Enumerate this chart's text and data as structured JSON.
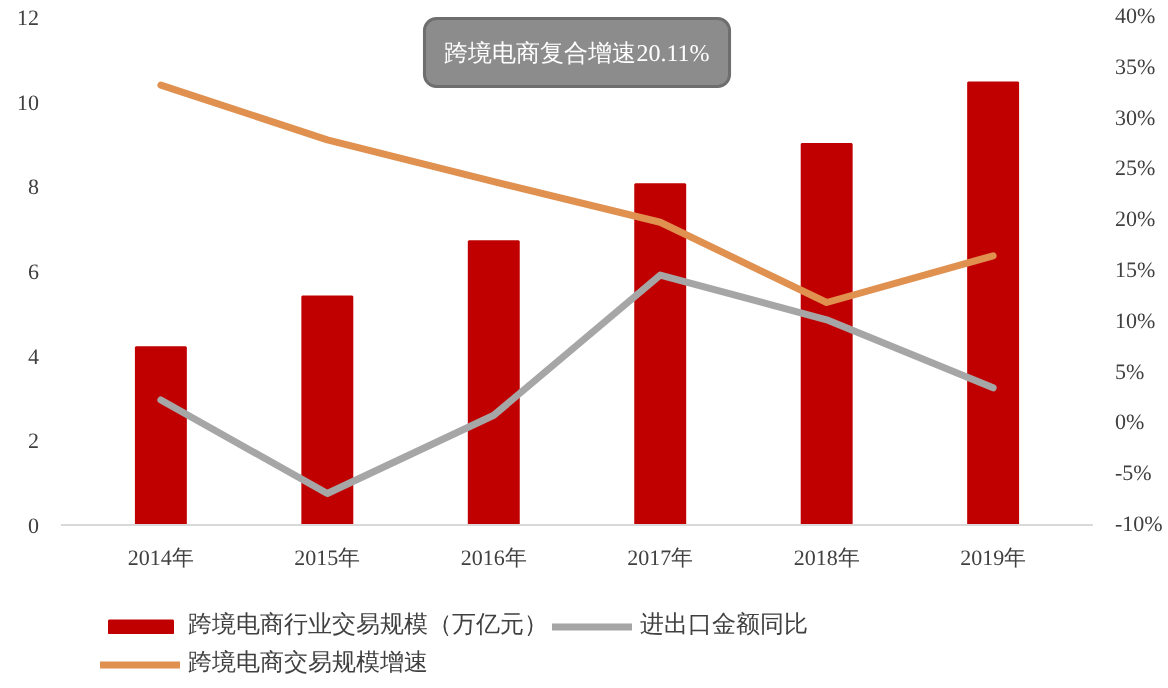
{
  "chart_data": {
    "type": "bar",
    "categories": [
      "2014年",
      "2015年",
      "2016年",
      "2017年",
      "2018年",
      "2019年"
    ],
    "series": [
      {
        "name": "跨境电商行业交易规模（万亿元）",
        "color": "#c00000",
        "values": [
          4.2,
          5.4,
          6.7,
          8.05,
          9.0,
          10.45
        ]
      },
      {
        "name": "跨境电商交易规模增速",
        "type": "line",
        "axis": "y2",
        "color": "#e0904f",
        "values": [
          33.3,
          27.9,
          23.8,
          19.8,
          11.9,
          16.5
        ]
      },
      {
        "name": "进出口金额同比",
        "type": "line",
        "axis": "y2",
        "color": "#a6a6a6",
        "values": [
          2.3,
          -6.9,
          0.8,
          14.6,
          10.2,
          3.5
        ]
      }
    ],
    "ylim": [
      0,
      12
    ],
    "yticks": [
      0,
      2,
      4,
      6,
      8,
      10,
      12
    ],
    "y2lim": [
      -10,
      40
    ],
    "y2ticks": [
      {
        "value": -10,
        "label": "-10%"
      },
      {
        "value": -5,
        "label": "-5%"
      },
      {
        "value": 0,
        "label": "0%"
      },
      {
        "value": 5,
        "label": "5%"
      },
      {
        "value": 10,
        "label": "10%"
      },
      {
        "value": 15,
        "label": "15%"
      },
      {
        "value": 20,
        "label": "20%"
      },
      {
        "value": 25,
        "label": "25%"
      },
      {
        "value": 30,
        "label": "30%"
      },
      {
        "value": 35,
        "label": "35%"
      },
      {
        "value": 40,
        "label": "40%"
      }
    ],
    "annotations": [
      "跨境电商复合增速20.11%"
    ],
    "grid": false,
    "legend": "bottom"
  }
}
